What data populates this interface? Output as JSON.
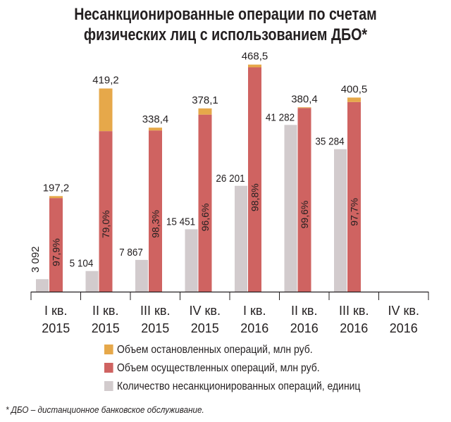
{
  "chart_data": {
    "type": "bar",
    "title_lines": [
      "Несанкционированные операции по счетам",
      "физических лиц с использованием ДБО*"
    ],
    "categories": [
      [
        "I кв.",
        "2015"
      ],
      [
        "II кв.",
        "2015"
      ],
      [
        "III кв.",
        "2015"
      ],
      [
        "IV кв.",
        "2015"
      ],
      [
        "I кв.",
        "2016"
      ],
      [
        "II кв.",
        "2016"
      ],
      [
        "III кв.",
        "2016"
      ],
      [
        "IV кв.",
        "2016"
      ]
    ],
    "series": [
      {
        "name": "Количество несанкционированных операций, единиц",
        "color": "#d2cbcd",
        "values": [
          3092,
          5104,
          7867,
          15451,
          26201,
          41282,
          35284,
          null
        ],
        "labels": [
          "3 092",
          "5 104",
          "7 867",
          "15 451",
          "26 201",
          "41 282",
          "35 284",
          ""
        ]
      },
      {
        "name": "Объем осуществленных операций, млн руб.",
        "color": "#cf6361",
        "values": [
          193.1,
          331.2,
          332.6,
          365.3,
          462.9,
          378.9,
          391.3,
          null
        ],
        "share_labels": [
          "97,9%",
          "79,0%",
          "98,3%",
          "96,6%",
          "98,8%",
          "99,6%",
          "97,7%",
          ""
        ]
      },
      {
        "name": "Объем остановленных операций, млн руб.",
        "color": "#e6a84a",
        "values": [
          4.1,
          88.0,
          5.8,
          12.8,
          5.6,
          1.5,
          9.2,
          null
        ]
      }
    ],
    "totals": [
      197.2,
      419.2,
      338.4,
      378.1,
      468.5,
      380.4,
      400.5,
      null
    ],
    "total_labels": [
      "197,2",
      "419,2",
      "338,4",
      "378,1",
      "468,5",
      "380,4",
      "400,5",
      ""
    ],
    "count_axis_max": 60000,
    "volume_axis_max": 500
  },
  "footnote": "* ДБО – дистанционное банковское обслуживание."
}
